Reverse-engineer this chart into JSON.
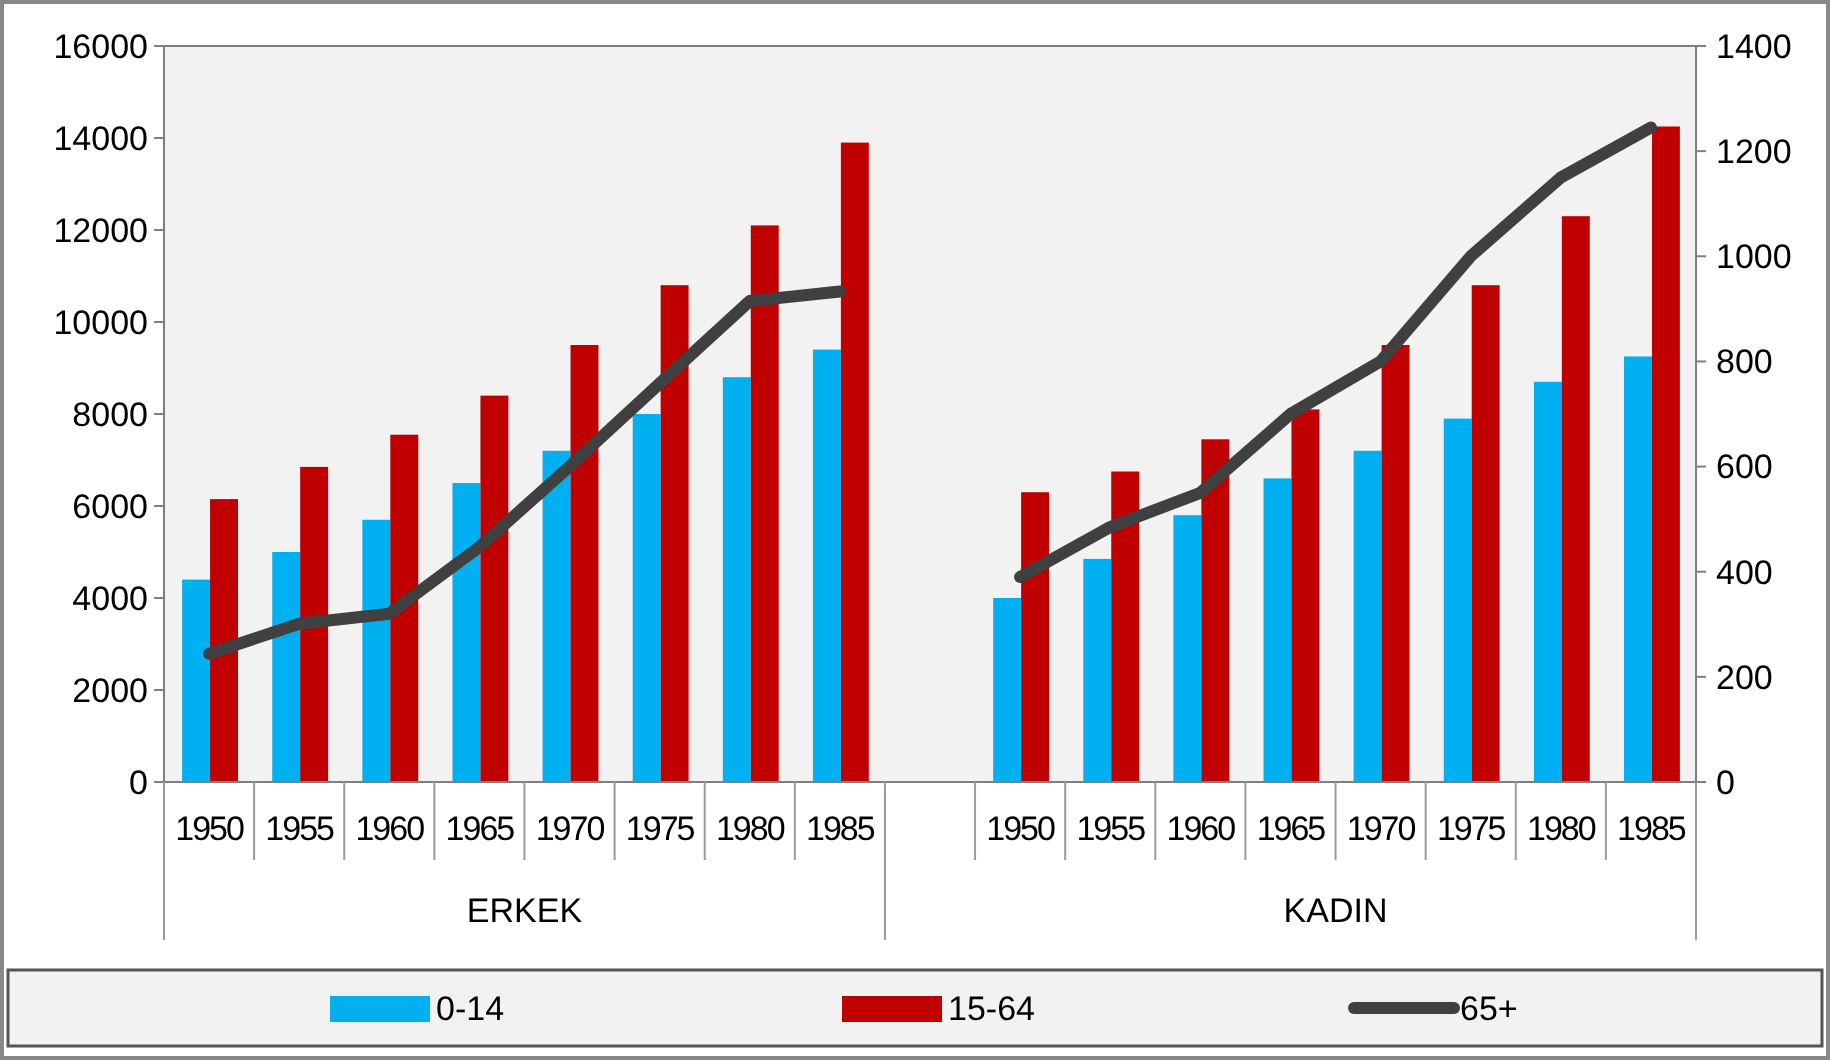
{
  "chart_data": {
    "type": "bar",
    "categories": [
      "1950",
      "1955",
      "1960",
      "1965",
      "1970",
      "1975",
      "1980",
      "1985",
      null,
      "1950",
      "1955",
      "1960",
      "1965",
      "1970",
      "1975",
      "1980",
      "1985"
    ],
    "series": [
      {
        "name": "0-14",
        "color": "#00b0f0",
        "values": [
          4400,
          5000,
          5700,
          6500,
          7200,
          8000,
          8800,
          9400,
          null,
          4000,
          4850,
          5800,
          6600,
          7200,
          7900,
          8700,
          9250
        ]
      },
      {
        "name": "15-64",
        "color": "#c00000",
        "values": [
          6150,
          6850,
          7550,
          8400,
          9500,
          10800,
          12100,
          13900,
          null,
          6300,
          6750,
          7450,
          8100,
          9500,
          10800,
          12300,
          14250
        ]
      },
      {
        "name": "65+",
        "type": "line",
        "axis": "y2",
        "color": "#404040",
        "values": [
          244,
          301,
          320,
          447,
          600,
          758,
          915,
          933,
          null,
          390,
          485,
          550,
          700,
          800,
          1000,
          1150,
          1245
        ]
      }
    ],
    "annotations": [
      "ERKEK",
      "KADIN"
    ],
    "ylim": [
      0,
      16000
    ],
    "yticks": [
      0,
      2000,
      4000,
      6000,
      8000,
      10000,
      12000,
      14000,
      16000
    ],
    "y2lim": [
      0,
      1400
    ],
    "y2ticks": [
      0,
      200,
      400,
      600,
      800,
      1000,
      1200,
      1400
    ],
    "grid": false,
    "legend": "bottom"
  }
}
